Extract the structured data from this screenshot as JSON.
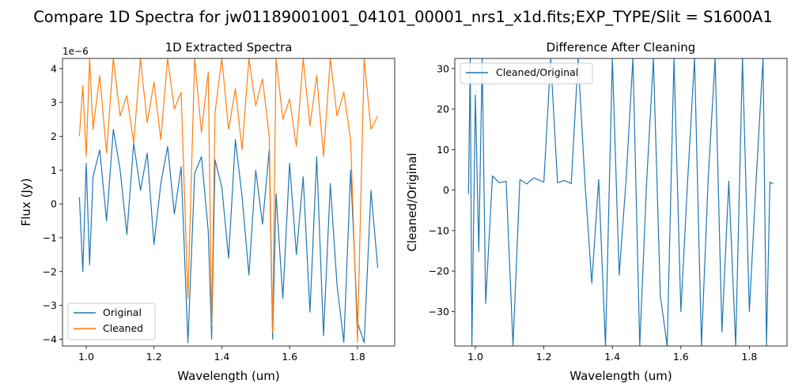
{
  "suptitle": "Compare 1D Spectra for jw01189001001_04101_00001_nrs1_x1d.fits;EXP_TYPE/Slit = S1600A1",
  "colors": {
    "original": "#1f77b4",
    "cleaned": "#ff7f0e"
  },
  "chart_data": [
    {
      "type": "line",
      "title": "1D Extracted Spectra",
      "xlabel": "Wavelength (um)",
      "ylabel": "Flux (Jy)",
      "offset_label": "1e−6",
      "xlim": [
        0.93,
        1.91
      ],
      "ylim": [
        -4.2,
        4.3
      ],
      "xticks": [
        1.0,
        1.2,
        1.4,
        1.6,
        1.8
      ],
      "xtick_labels": [
        "1.0",
        "1.2",
        "1.4",
        "1.6",
        "1.8"
      ],
      "yticks": [
        -4,
        -3,
        -2,
        -1,
        0,
        1,
        2,
        3,
        4
      ],
      "ytick_labels": [
        "−4",
        "−3",
        "−2",
        "−1",
        "0",
        "1",
        "2",
        "3",
        "4"
      ],
      "legend_position": "lower-left",
      "series": [
        {
          "name": "Original",
          "color": "#1f77b4",
          "x": [
            0.98,
            0.99,
            1.0,
            1.01,
            1.02,
            1.04,
            1.06,
            1.08,
            1.1,
            1.12,
            1.14,
            1.16,
            1.18,
            1.2,
            1.22,
            1.24,
            1.26,
            1.28,
            1.3,
            1.32,
            1.34,
            1.36,
            1.37,
            1.38,
            1.4,
            1.42,
            1.44,
            1.46,
            1.48,
            1.5,
            1.52,
            1.54,
            1.55,
            1.56,
            1.58,
            1.6,
            1.62,
            1.64,
            1.66,
            1.68,
            1.7,
            1.72,
            1.74,
            1.76,
            1.78,
            1.8,
            1.82,
            1.84,
            1.86
          ],
          "values": [
            0.2,
            -2.0,
            1.2,
            -1.8,
            0.8,
            1.6,
            -0.5,
            2.2,
            1.0,
            -0.9,
            1.8,
            0.4,
            1.5,
            -1.2,
            0.6,
            1.7,
            -0.3,
            1.1,
            -4.1,
            0.9,
            1.4,
            -0.8,
            -4.0,
            1.3,
            0.5,
            -1.6,
            1.9,
            0.2,
            -2.1,
            1.0,
            -0.6,
            1.6,
            -4.0,
            0.3,
            -2.8,
            1.2,
            -1.5,
            0.8,
            -3.2,
            1.4,
            -3.9,
            0.6,
            -2.4,
            -4.1,
            1.0,
            -3.5,
            -4.1,
            0.4,
            -1.9
          ]
        },
        {
          "name": "Cleaned",
          "color": "#ff7f0e",
          "x": [
            0.98,
            0.99,
            1.0,
            1.01,
            1.02,
            1.04,
            1.06,
            1.08,
            1.1,
            1.12,
            1.14,
            1.16,
            1.18,
            1.2,
            1.22,
            1.24,
            1.26,
            1.28,
            1.3,
            1.32,
            1.34,
            1.36,
            1.37,
            1.38,
            1.4,
            1.42,
            1.44,
            1.46,
            1.48,
            1.5,
            1.52,
            1.54,
            1.55,
            1.56,
            1.58,
            1.6,
            1.62,
            1.64,
            1.66,
            1.68,
            1.7,
            1.72,
            1.74,
            1.76,
            1.78,
            1.8,
            1.82,
            1.84,
            1.86
          ],
          "values": [
            2.0,
            3.5,
            1.4,
            4.3,
            2.2,
            3.8,
            1.5,
            4.3,
            2.6,
            3.2,
            1.8,
            4.3,
            2.4,
            3.6,
            1.9,
            4.3,
            2.8,
            3.3,
            -2.8,
            4.3,
            2.1,
            3.9,
            -3.6,
            2.7,
            4.3,
            2.2,
            3.4,
            1.6,
            4.3,
            2.9,
            3.7,
            2.0,
            -3.8,
            4.3,
            2.5,
            3.1,
            1.7,
            4.3,
            2.3,
            3.8,
            1.4,
            4.3,
            2.6,
            3.3,
            1.9,
            -4.1,
            4.3,
            2.2,
            2.6
          ]
        }
      ]
    },
    {
      "type": "line",
      "title": "Difference After Cleaning",
      "xlabel": "Wavelength (um)",
      "ylabel": "Cleaned/Original",
      "xlim": [
        0.94,
        1.91
      ],
      "ylim": [
        -38.5,
        32.5
      ],
      "xticks": [
        1.0,
        1.2,
        1.4,
        1.6,
        1.8
      ],
      "xtick_labels": [
        "1.0",
        "1.2",
        "1.4",
        "1.6",
        "1.8"
      ],
      "yticks": [
        -30,
        -20,
        -10,
        0,
        10,
        20,
        30
      ],
      "ytick_labels": [
        "−30",
        "−20",
        "−10",
        "0",
        "10",
        "20",
        "30"
      ],
      "legend_position": "top-left",
      "series": [
        {
          "name": "Cleaned/Original",
          "color": "#1f77b4",
          "x": [
            0.98,
            0.985,
            0.99,
            1.0,
            1.01,
            1.02,
            1.03,
            1.05,
            1.07,
            1.09,
            1.11,
            1.13,
            1.15,
            1.17,
            1.2,
            1.22,
            1.24,
            1.26,
            1.28,
            1.3,
            1.32,
            1.34,
            1.36,
            1.38,
            1.4,
            1.42,
            1.44,
            1.46,
            1.48,
            1.5,
            1.52,
            1.54,
            1.56,
            1.58,
            1.6,
            1.62,
            1.64,
            1.66,
            1.68,
            1.7,
            1.72,
            1.74,
            1.76,
            1.78,
            1.8,
            1.82,
            1.84,
            1.85,
            1.86,
            1.87
          ],
          "values": [
            -1.0,
            32.5,
            -38.5,
            23.5,
            -15.2,
            32.5,
            -28.0,
            3.5,
            1.8,
            2.2,
            -38.5,
            2.6,
            1.5,
            3.0,
            2.0,
            32.5,
            1.8,
            2.4,
            1.6,
            32.5,
            2.0,
            -23.0,
            2.6,
            -38.5,
            32.5,
            -21.0,
            2.4,
            32.5,
            -38.5,
            1.9,
            32.5,
            -26.0,
            -38.5,
            32.5,
            -30.0,
            2.5,
            32.5,
            -38.5,
            3.0,
            32.5,
            -35.0,
            2.2,
            -38.5,
            32.5,
            -30.0,
            2.6,
            32.5,
            -38.5,
            2.0,
            1.5
          ]
        }
      ]
    }
  ]
}
